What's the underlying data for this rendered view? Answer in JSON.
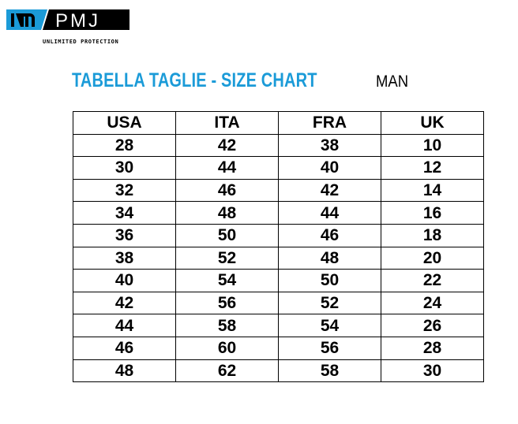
{
  "logo": {
    "mark": "m",
    "brand": "PMJ",
    "tagline": "UNLIMITED PROTECTION",
    "colors": {
      "blue": "#1b9bd8",
      "black": "#000000"
    }
  },
  "title": "TABELLA TAGLIE - SIZE CHART",
  "gender": "MAN",
  "table": {
    "headers": [
      "USA",
      "ITA",
      "FRA",
      "UK"
    ],
    "rows": [
      [
        "28",
        "42",
        "38",
        "10"
      ],
      [
        "30",
        "44",
        "40",
        "12"
      ],
      [
        "32",
        "46",
        "42",
        "14"
      ],
      [
        "34",
        "48",
        "44",
        "16"
      ],
      [
        "36",
        "50",
        "46",
        "18"
      ],
      [
        "38",
        "52",
        "48",
        "20"
      ],
      [
        "40",
        "54",
        "50",
        "22"
      ],
      [
        "42",
        "56",
        "52",
        "24"
      ],
      [
        "44",
        "58",
        "54",
        "26"
      ],
      [
        "46",
        "60",
        "56",
        "28"
      ],
      [
        "48",
        "62",
        "58",
        "30"
      ]
    ]
  }
}
